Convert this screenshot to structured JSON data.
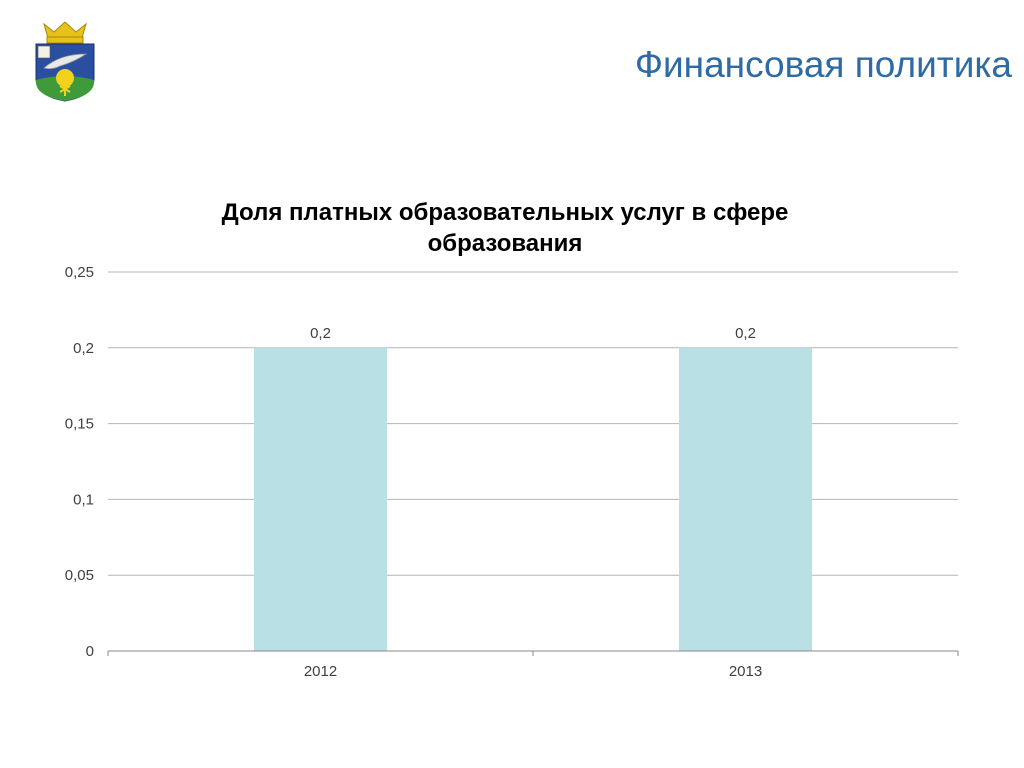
{
  "slide": {
    "title": "Финансовая политика",
    "emblem_icon": "coat-of-arms-icon"
  },
  "colors": {
    "title": "#2e6aa3",
    "bar": "#b9e0e4",
    "grid": "#b4b4b4",
    "axis_text": "#404040"
  },
  "chart_data": {
    "type": "bar",
    "title_lines": [
      "Доля платных образовательных услуг в сфере",
      "образования"
    ],
    "categories": [
      "2012",
      "2013"
    ],
    "values": [
      0.2,
      0.2
    ],
    "data_labels": [
      "0,2",
      "0,2"
    ],
    "y_ticks": [
      0,
      0.05,
      0.1,
      0.15,
      0.2,
      0.25
    ],
    "y_tick_labels": [
      "0",
      "0,05",
      "0,1",
      "0,15",
      "0,2",
      "0,25"
    ],
    "ylim": [
      0,
      0.25
    ],
    "grid": true,
    "legend": "none"
  }
}
